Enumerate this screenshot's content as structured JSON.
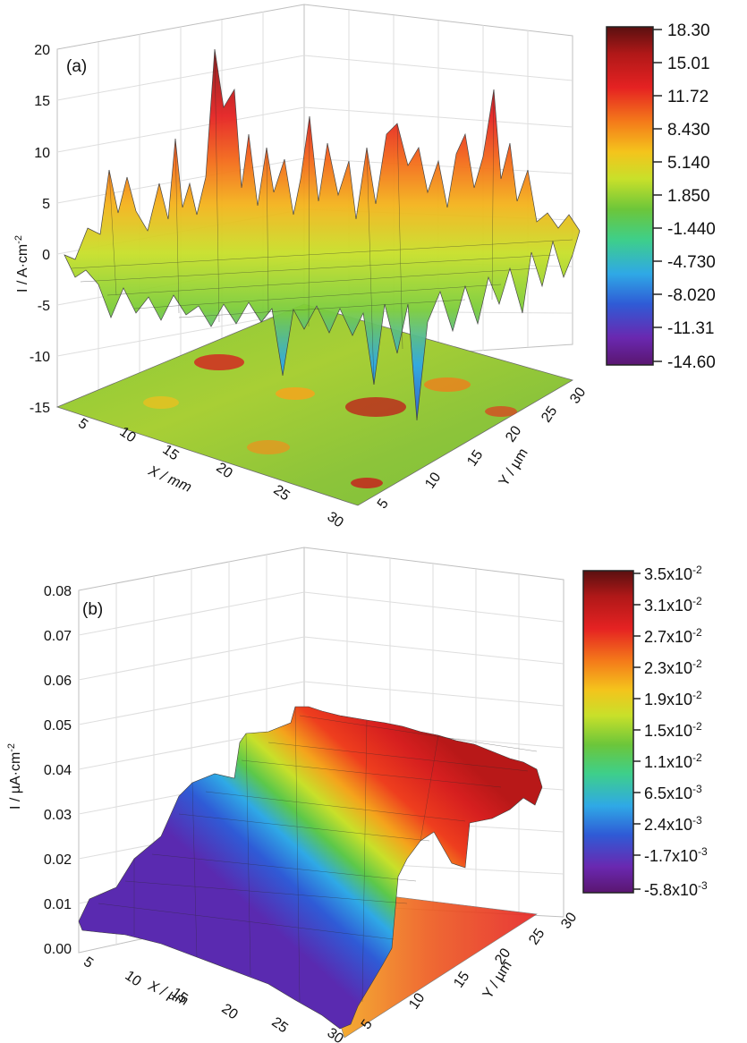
{
  "chart_data": [
    {
      "type": "surface3d",
      "panel_label": "(a)",
      "zlabel": "I / A·cm",
      "zlabel_exp": "-2",
      "xlabel": "X / mm",
      "ylabel": "Y / µm",
      "zlim": [
        -15,
        20
      ],
      "z_ticks": [
        "20",
        "15",
        "10",
        "5",
        "0",
        "-5",
        "-10",
        "-15"
      ],
      "x_ticks": [
        "5",
        "10",
        "15",
        "20",
        "25",
        "30"
      ],
      "y_ticks": [
        "5",
        "10",
        "15",
        "20",
        "25",
        "30"
      ],
      "colorbar_labels": [
        "18.30",
        "15.01",
        "11.72",
        "8.430",
        "5.140",
        "1.850",
        "-1.440",
        "-4.730",
        "-8.020",
        "-11.31",
        "-14.60"
      ],
      "grid": true,
      "surface_note": "noisy current surface fluctuating around 0 with peaks up to about 18 and troughs to about -15, contour projection on floor"
    },
    {
      "type": "surface3d",
      "panel_label": "(b)",
      "zlabel": "I / µA·cm",
      "zlabel_exp": "-2",
      "xlabel": "X / µm",
      "ylabel": "Y / µm",
      "zlim": [
        0.0,
        0.08
      ],
      "z_ticks": [
        "0.08",
        "0.07",
        "0.06",
        "0.05",
        "0.04",
        "0.03",
        "0.02",
        "0.01",
        "0.00"
      ],
      "x_ticks": [
        "5",
        "10",
        "15",
        "20",
        "25",
        "30"
      ],
      "y_ticks": [
        "5",
        "10",
        "15",
        "20",
        "25",
        "30"
      ],
      "colorbar_labels": [
        {
          "m": "3.5x10",
          "e": "-2"
        },
        {
          "m": "3.1x10",
          "e": "-2"
        },
        {
          "m": "2.7x10",
          "e": "-2"
        },
        {
          "m": "2.3x10",
          "e": "-2"
        },
        {
          "m": "1.9x10",
          "e": "-2"
        },
        {
          "m": "1.5x10",
          "e": "-2"
        },
        {
          "m": "1.1x10",
          "e": "-2"
        },
        {
          "m": "6.5x10",
          "e": "-3"
        },
        {
          "m": "2.4x10",
          "e": "-3"
        },
        {
          "m": "-1.7x10",
          "e": "-3"
        },
        {
          "m": "-5.8x10",
          "e": "-3"
        }
      ],
      "grid": true,
      "surface_note": "step-shaped surface rising from about 0.00 at low Y to about 0.035 at high Y, ridge running along X"
    }
  ]
}
